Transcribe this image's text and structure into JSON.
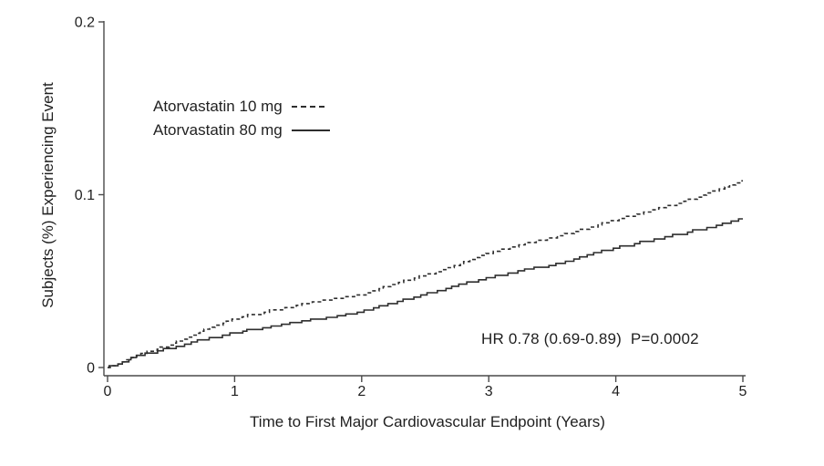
{
  "figure": {
    "background": "#ffffff",
    "text_color": "#1f1f1f",
    "line_color": "#2e2e2e",
    "axis_color": "#4a4a4a"
  },
  "chart_data": {
    "type": "line",
    "subtype": "kaplan-meier-cumulative-incidence",
    "title": "",
    "xlabel": "Time to First Major Cardiovascular Endpoint (Years)",
    "ylabel": "Subjects (%) Experiencing Event",
    "xlim": [
      0,
      5
    ],
    "ylim": [
      0,
      0.2
    ],
    "grid": false,
    "legend_position": "upper-left-inside",
    "x_ticks": {
      "values": [
        0,
        1,
        2,
        3,
        4,
        5
      ],
      "labels": [
        "0",
        "1",
        "2",
        "3",
        "4",
        "5"
      ]
    },
    "y_ticks": {
      "values": [
        0,
        0.1,
        0.2
      ],
      "labels": [
        "0",
        "0.1",
        "0.2"
      ]
    },
    "annotation": {
      "text": "HR 0.78 (0.69-0.89)  P=0.0002"
    },
    "series": [
      {
        "name": "Atorvastatin 10 mg",
        "line_style": "dashed",
        "x": [
          0,
          0.1,
          0.25,
          0.5,
          0.75,
          1.0,
          1.25,
          1.5,
          1.75,
          2.0,
          2.25,
          2.5,
          2.75,
          3.0,
          3.25,
          3.5,
          3.75,
          4.0,
          4.25,
          4.5,
          4.75,
          5.0
        ],
        "y": [
          0,
          0.002,
          0.007,
          0.013,
          0.021,
          0.028,
          0.032,
          0.036,
          0.039,
          0.042,
          0.048,
          0.053,
          0.059,
          0.066,
          0.071,
          0.075,
          0.08,
          0.085,
          0.09,
          0.095,
          0.101,
          0.108
        ]
      },
      {
        "name": "Atorvastatin 80 mg",
        "line_style": "solid",
        "x": [
          0,
          0.1,
          0.25,
          0.5,
          0.75,
          1.0,
          1.25,
          1.5,
          1.75,
          2.0,
          2.25,
          2.5,
          2.75,
          3.0,
          3.25,
          3.5,
          3.75,
          4.0,
          4.25,
          4.5,
          4.75,
          5.0
        ],
        "y": [
          0,
          0.002,
          0.007,
          0.011,
          0.016,
          0.02,
          0.023,
          0.026,
          0.029,
          0.032,
          0.037,
          0.042,
          0.047,
          0.052,
          0.056,
          0.059,
          0.064,
          0.069,
          0.073,
          0.077,
          0.081,
          0.086
        ]
      }
    ]
  }
}
